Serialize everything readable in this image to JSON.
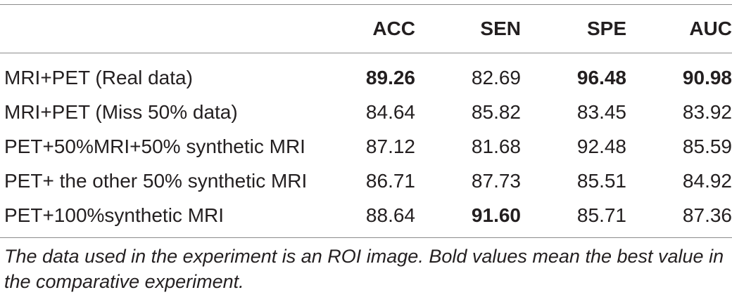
{
  "table": {
    "columns": [
      "",
      "ACC",
      "SEN",
      "SPE",
      "AUC"
    ],
    "rows": [
      {
        "label": "MRI+PET (Real data)",
        "values": [
          "89.26",
          "82.69",
          "96.48",
          "90.98"
        ],
        "bold": [
          true,
          false,
          true,
          true
        ]
      },
      {
        "label": "MRI+PET (Miss 50% data)",
        "values": [
          "84.64",
          "85.82",
          "83.45",
          "83.92"
        ],
        "bold": [
          false,
          false,
          false,
          false
        ]
      },
      {
        "label": "PET+50%MRI+50% synthetic MRI",
        "values": [
          "87.12",
          "81.68",
          "92.48",
          "85.59"
        ],
        "bold": [
          false,
          false,
          false,
          false
        ]
      },
      {
        "label": "PET+ the other 50% synthetic MRI",
        "values": [
          "86.71",
          "87.73",
          "85.51",
          "84.92"
        ],
        "bold": [
          false,
          false,
          false,
          false
        ]
      },
      {
        "label": "PET+100%synthetic MRI",
        "values": [
          "88.64",
          "91.60",
          "85.71",
          "87.36"
        ],
        "bold": [
          false,
          true,
          false,
          false
        ]
      }
    ]
  },
  "caption": "The data used in the experiment is an ROI image. Bold values mean the best value in the comparative experiment."
}
